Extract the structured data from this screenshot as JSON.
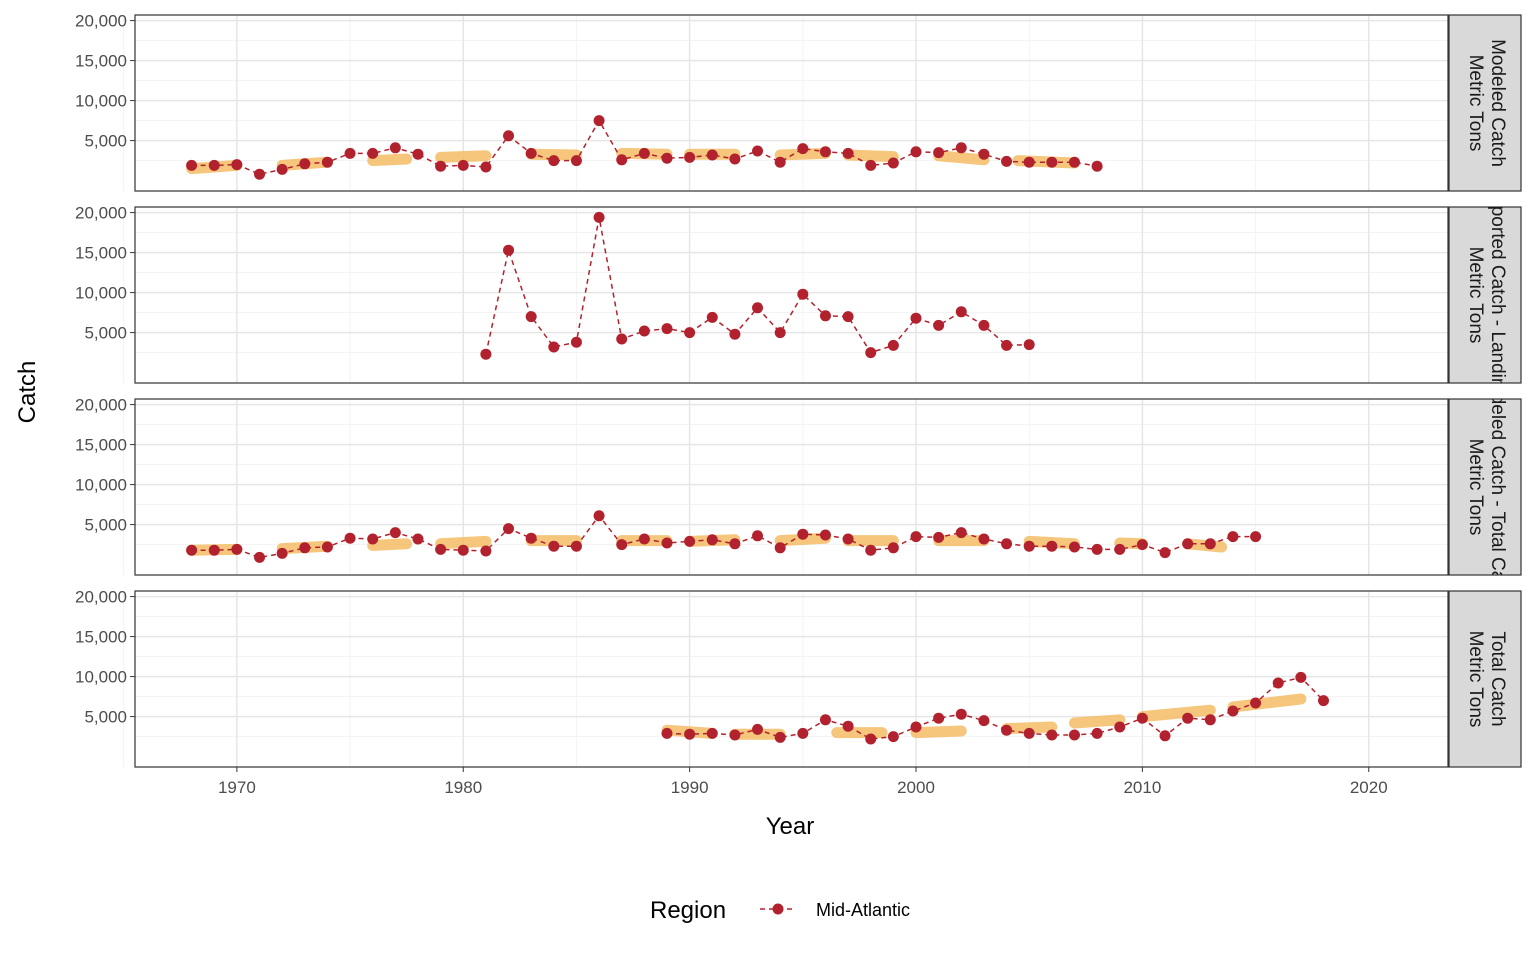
{
  "chart_data": {
    "type": "line",
    "xlabel": "Year",
    "ylabel": "Catch",
    "xlim": [
      1965.5,
      2023.5
    ],
    "ylim": [
      0,
      20000
    ],
    "x_ticks": [
      1970,
      1980,
      1990,
      2000,
      2010,
      2020
    ],
    "y_ticks": [
      5000,
      10000,
      15000,
      20000
    ],
    "y_tick_labels": [
      "5,000",
      "10,000",
      "15,000",
      "20,000"
    ],
    "legend": {
      "title": "Region",
      "entries": [
        {
          "label": "Mid-Atlantic",
          "color": "#b2222e"
        }
      ],
      "placement": "bottom"
    },
    "colors": {
      "series": "#b2222e",
      "trend": "#f5c06e",
      "strip_bg": "#d9d9d9",
      "grid": "#ebebeb"
    },
    "panels": [
      {
        "strip_lines": [
          "Modeled Catch",
          "Metric Tons"
        ],
        "x": [
          1968,
          1969,
          1970,
          1971,
          1972,
          1973,
          1974,
          1975,
          1976,
          1977,
          1978,
          1979,
          1980,
          1981,
          1982,
          1983,
          1984,
          1985,
          1986,
          1987,
          1988,
          1989,
          1990,
          1991,
          1992,
          1993,
          1994,
          1995,
          1996,
          1997,
          1998,
          1999,
          2000,
          2001,
          2002,
          2003,
          2004,
          2005,
          2006,
          2007,
          2008
        ],
        "y": [
          1900,
          1900,
          2000,
          800,
          1400,
          2100,
          2300,
          3400,
          3400,
          4100,
          3300,
          1800,
          1900,
          1700,
          5600,
          3400,
          2500,
          2500,
          7500,
          2600,
          3400,
          2800,
          2900,
          3200,
          2700,
          3700,
          2300,
          4000,
          3600,
          3400,
          1900,
          2200,
          3600,
          3500,
          4100,
          3300,
          2400,
          2300,
          2300,
          2300,
          1800
        ],
        "trend_segments": [
          {
            "x": [
              1968,
              1970
            ],
            "y": [
              1500,
              1900
            ]
          },
          {
            "x": [
              1972,
              1974
            ],
            "y": [
              1900,
              2300
            ]
          },
          {
            "x": [
              1976,
              1977.5
            ],
            "y": [
              2500,
              2700
            ]
          },
          {
            "x": [
              1979,
              1981
            ],
            "y": [
              2900,
              3100
            ]
          },
          {
            "x": [
              1983,
              1985
            ],
            "y": [
              3300,
              3200
            ]
          },
          {
            "x": [
              1987,
              1989
            ],
            "y": [
              3400,
              3300
            ]
          },
          {
            "x": [
              1990,
              1992
            ],
            "y": [
              3300,
              3300
            ]
          },
          {
            "x": [
              1994,
              1996
            ],
            "y": [
              3200,
              3400
            ]
          },
          {
            "x": [
              1997,
              1999
            ],
            "y": [
              3200,
              3000
            ]
          },
          {
            "x": [
              2001,
              2003
            ],
            "y": [
              3100,
              2600
            ]
          },
          {
            "x": [
              2004.5,
              2007
            ],
            "y": [
              2500,
              2200
            ]
          }
        ]
      },
      {
        "strip_lines": [
          "Reported Catch - Landings",
          "Metric Tons"
        ],
        "x": [
          1981,
          1982,
          1983,
          1984,
          1985,
          1986,
          1987,
          1988,
          1989,
          1990,
          1991,
          1992,
          1993,
          1994,
          1995,
          1996,
          1997,
          1998,
          1999,
          2000,
          2001,
          2002,
          2003,
          2004,
          2005
        ],
        "y": [
          2300,
          15300,
          7000,
          3200,
          3800,
          19400,
          4200,
          5200,
          5500,
          5000,
          6900,
          4800,
          8100,
          5000,
          9800,
          7100,
          7000,
          2500,
          3400,
          6800,
          5900,
          7600,
          5900,
          3400,
          3500
        ],
        "trend_segments": []
      },
      {
        "strip_lines": [
          "Modeled Catch - Total Catch",
          "Metric Tons"
        ],
        "x": [
          1968,
          1969,
          1970,
          1971,
          1972,
          1973,
          1974,
          1975,
          1976,
          1977,
          1978,
          1979,
          1980,
          1981,
          1982,
          1983,
          1984,
          1985,
          1986,
          1987,
          1988,
          1989,
          1990,
          1991,
          1992,
          1993,
          1994,
          1995,
          1996,
          1997,
          1998,
          1999,
          2000,
          2001,
          2002,
          2003,
          2004,
          2005,
          2006,
          2007,
          2008,
          2009,
          2010,
          2011,
          2012,
          2013,
          2014,
          2015
        ],
        "y": [
          1800,
          1800,
          1900,
          900,
          1400,
          2100,
          2200,
          3300,
          3200,
          4000,
          3200,
          1900,
          1800,
          1700,
          4500,
          3300,
          2300,
          2300,
          6100,
          2500,
          3200,
          2700,
          2900,
          3100,
          2600,
          3600,
          2100,
          3800,
          3700,
          3200,
          1800,
          2100,
          3500,
          3400,
          4000,
          3200,
          2600,
          2300,
          2300,
          2200,
          1900,
          1900,
          2500,
          1500,
          2600,
          2600,
          3500,
          3500
        ],
        "trend_segments": [
          {
            "x": [
              1968,
              1970
            ],
            "y": [
              1800,
              1900
            ]
          },
          {
            "x": [
              1972,
              1974
            ],
            "y": [
              2000,
              2300
            ]
          },
          {
            "x": [
              1976,
              1977.5
            ],
            "y": [
              2400,
              2600
            ]
          },
          {
            "x": [
              1979,
              1981
            ],
            "y": [
              2600,
              2900
            ]
          },
          {
            "x": [
              1983,
              1985
            ],
            "y": [
              3000,
              3000
            ]
          },
          {
            "x": [
              1987,
              1989
            ],
            "y": [
              3000,
              3000
            ]
          },
          {
            "x": [
              1990,
              1992
            ],
            "y": [
              2900,
              3100
            ]
          },
          {
            "x": [
              1994,
              1996
            ],
            "y": [
              3000,
              3300
            ]
          },
          {
            "x": [
              1997,
              1999
            ],
            "y": [
              3000,
              3000
            ]
          },
          {
            "x": [
              2001,
              2003
            ],
            "y": [
              3000,
              3000
            ]
          },
          {
            "x": [
              2005,
              2007
            ],
            "y": [
              2900,
              2600
            ]
          },
          {
            "x": [
              2009,
              2010
            ],
            "y": [
              2700,
              2600
            ]
          },
          {
            "x": [
              2012,
              2013.5
            ],
            "y": [
              2600,
              2200
            ]
          }
        ]
      },
      {
        "strip_lines": [
          "Total Catch",
          "Metric Tons"
        ],
        "x": [
          1989,
          1990,
          1991,
          1992,
          1993,
          1994,
          1995,
          1996,
          1997,
          1998,
          1999,
          2000,
          2001,
          2002,
          2003,
          2004,
          2005,
          2006,
          2007,
          2008,
          2009,
          2010,
          2011,
          2012,
          2013,
          2014,
          2015,
          2016,
          2017,
          2018
        ],
        "y": [
          2900,
          2800,
          2900,
          2700,
          3400,
          2400,
          2900,
          4600,
          3800,
          2200,
          2500,
          3700,
          4800,
          5300,
          4500,
          3300,
          2900,
          2700,
          2700,
          2900,
          3700,
          4800,
          2600,
          4800,
          4600,
          5700,
          6700,
          9200,
          9900,
          7000
        ],
        "trend_segments": [
          {
            "x": [
              1989,
              1991
            ],
            "y": [
              3300,
              2900
            ]
          },
          {
            "x": [
              1992,
              1994
            ],
            "y": [
              2800,
              2800
            ]
          },
          {
            "x": [
              1996.5,
              1998.5
            ],
            "y": [
              3000,
              3000
            ]
          },
          {
            "x": [
              2000,
              2002
            ],
            "y": [
              3000,
              3200
            ]
          },
          {
            "x": [
              2004,
              2006
            ],
            "y": [
              3500,
              3700
            ]
          },
          {
            "x": [
              2007,
              2009
            ],
            "y": [
              4200,
              4600
            ]
          },
          {
            "x": [
              2010,
              2013
            ],
            "y": [
              5000,
              5800
            ]
          },
          {
            "x": [
              2014,
              2017
            ],
            "y": [
              6200,
              7200
            ]
          }
        ]
      }
    ]
  }
}
